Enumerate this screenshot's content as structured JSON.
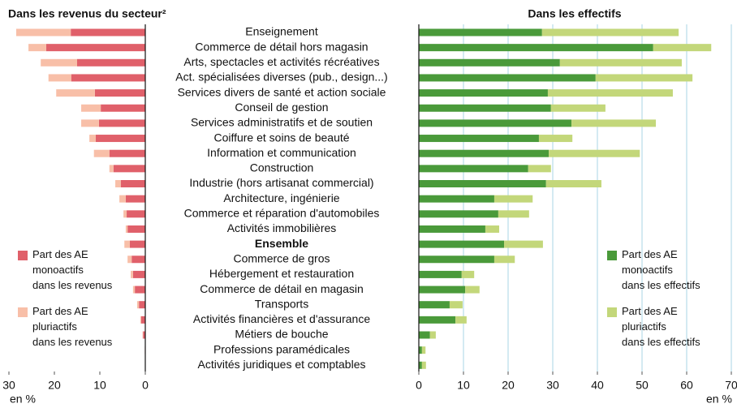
{
  "chart_data": [
    {
      "type": "hbar_stacked",
      "title": "Dans les revenus du secteur²",
      "axis_label": "en %",
      "categories": [
        "Enseignement",
        "Commerce de détail hors magasin",
        "Arts, spectacles et activités récréatives",
        "Act. spécialisées diverses (pub., design...)",
        "Services divers de santé et action sociale",
        "Conseil de gestion",
        "Services administratifs et de soutien",
        "Coiffure et soins de beauté",
        "Information et communication",
        "Construction",
        "Industrie (hors artisanat commercial)",
        "Architecture, ingénierie",
        "Commerce et réparation d'automobiles",
        "Activités immobilières",
        "Ensemble",
        "Commerce de gros",
        "Hébergement et restauration",
        "Commerce de détail en magasin",
        "Transports",
        "Activités financières et d'assurance",
        "Métiers de bouche",
        "Professions paramédicales",
        "Activités juridiques et comptables"
      ],
      "bold_categories": [
        14
      ],
      "series": [
        {
          "name": "Part des AE\nmonoactifs\ndans les revenus",
          "color": "#e0606a",
          "values": [
            16.4,
            21.8,
            15,
            16.3,
            11.1,
            9.8,
            10.2,
            10.9,
            7.9,
            7,
            5.4,
            4.3,
            4.1,
            3.9,
            3.4,
            3,
            2.7,
            2.3,
            1.4,
            0.9,
            0.5,
            0.1,
            0
          ]
        },
        {
          "name": "Part des AE\npluriactifs\ndans les revenus",
          "color": "#f8bfa8",
          "values": [
            12,
            3.9,
            8,
            5,
            8.5,
            4.3,
            3.9,
            1.4,
            3.4,
            0.9,
            1.2,
            1.4,
            0.7,
            0.4,
            1.2,
            0.9,
            0.5,
            0.4,
            0.4,
            0.2,
            0.1,
            0,
            0
          ]
        }
      ],
      "xlim": [
        0,
        30
      ],
      "xticks": [
        0,
        10,
        20,
        30
      ],
      "x_reversed": true,
      "grid": false
    },
    {
      "type": "hbar_stacked",
      "title": "Dans les effectifs",
      "axis_label": "en %",
      "series": [
        {
          "name": "Part des AE\nmonoactifs\ndans les effectifs",
          "color": "#4a9a3a",
          "values": [
            27.6,
            52.5,
            31.6,
            39.6,
            28.9,
            29.6,
            34.2,
            26.9,
            29.1,
            24.5,
            28.5,
            16.9,
            17.8,
            14.9,
            19.1,
            16.9,
            9.6,
            10.4,
            6.9,
            8.2,
            2.5,
            0.7,
            0.7
          ]
        },
        {
          "name": "Part des AE\npluriactifs\ndans les effectifs",
          "color": "#c3d77a",
          "values": [
            30.6,
            13,
            27.3,
            21.7,
            28,
            12.2,
            18.9,
            7.5,
            20.4,
            5.1,
            12.4,
            8.6,
            6.9,
            3.1,
            8.7,
            4.6,
            2.8,
            3.2,
            2.9,
            2.5,
            1.3,
            0.8,
            0.9
          ]
        }
      ],
      "xlim": [
        0,
        70
      ],
      "xticks": [
        0,
        10,
        20,
        30,
        40,
        50,
        60,
        70
      ],
      "x_reversed": false,
      "grid": true
    }
  ]
}
